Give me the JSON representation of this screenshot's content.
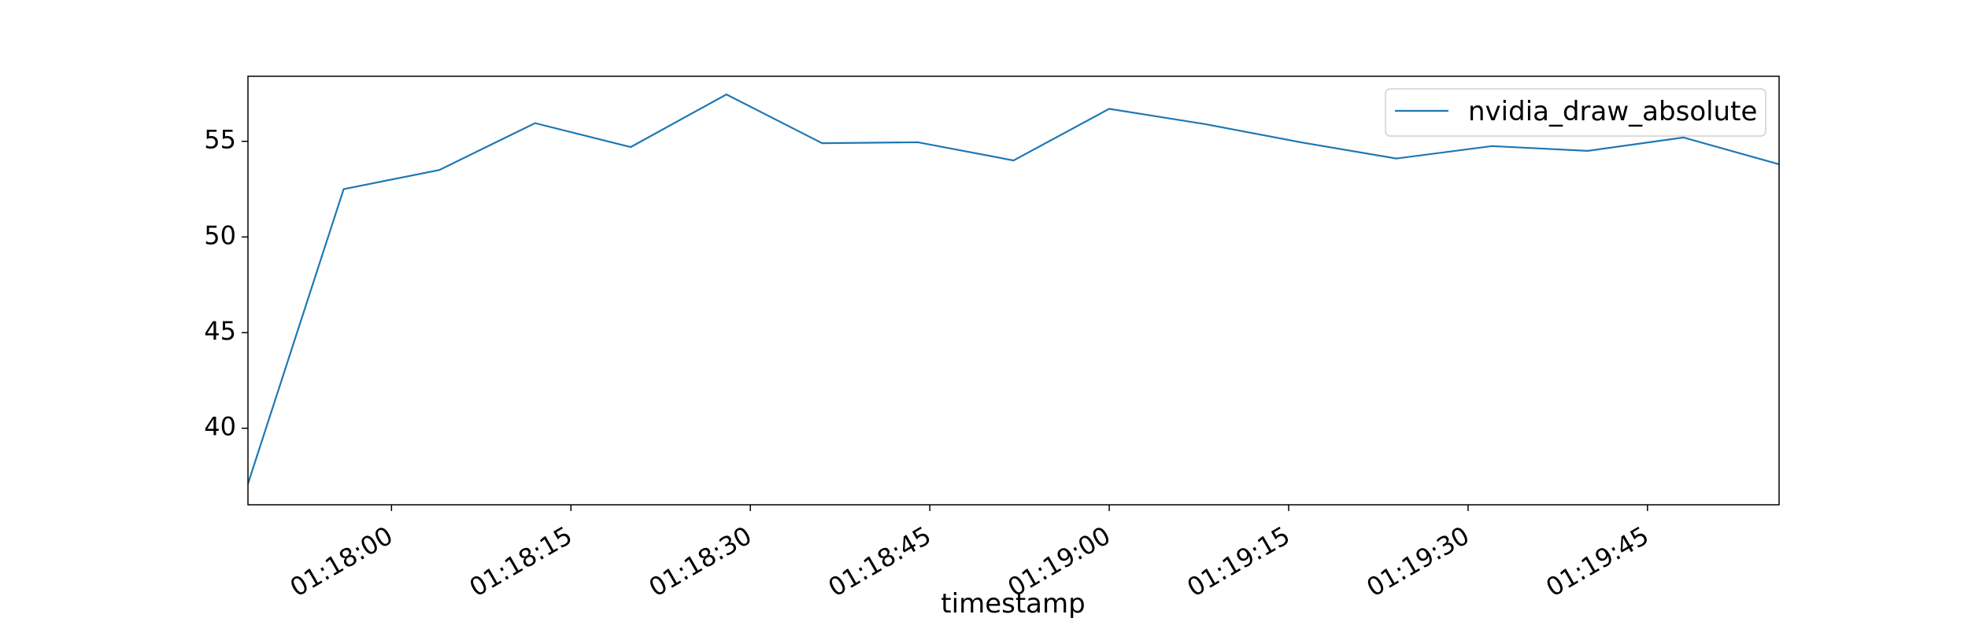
{
  "chart_data": {
    "type": "line",
    "title": "",
    "xlabel": "timestamp",
    "ylabel": "",
    "x_ticks": [
      "01:18:00",
      "01:18:15",
      "01:18:30",
      "01:18:45",
      "01:19:00",
      "01:19:15",
      "01:19:30",
      "01:19:45"
    ],
    "y_ticks": [
      "40",
      "45",
      "50",
      "55"
    ],
    "xlim": [
      "01:17:48",
      "01:19:56"
    ],
    "ylim": [
      36,
      58.4
    ],
    "grid": false,
    "legend_position": "top-right",
    "series": [
      {
        "name": "nvidia_draw_absolute",
        "color": "#1f77b4",
        "x": [
          "01:17:48",
          "01:17:56",
          "01:18:04",
          "01:18:12",
          "01:18:20",
          "01:18:28",
          "01:18:36",
          "01:18:44",
          "01:18:52",
          "01:19:00",
          "01:19:08",
          "01:19:16",
          "01:19:24",
          "01:19:32",
          "01:19:40",
          "01:19:48",
          "01:19:56"
        ],
        "y": [
          37.1,
          52.5,
          53.5,
          55.95,
          54.7,
          57.45,
          54.9,
          54.95,
          54.0,
          56.7,
          55.9,
          54.95,
          54.1,
          54.75,
          54.5,
          55.2,
          53.8
        ]
      }
    ]
  }
}
